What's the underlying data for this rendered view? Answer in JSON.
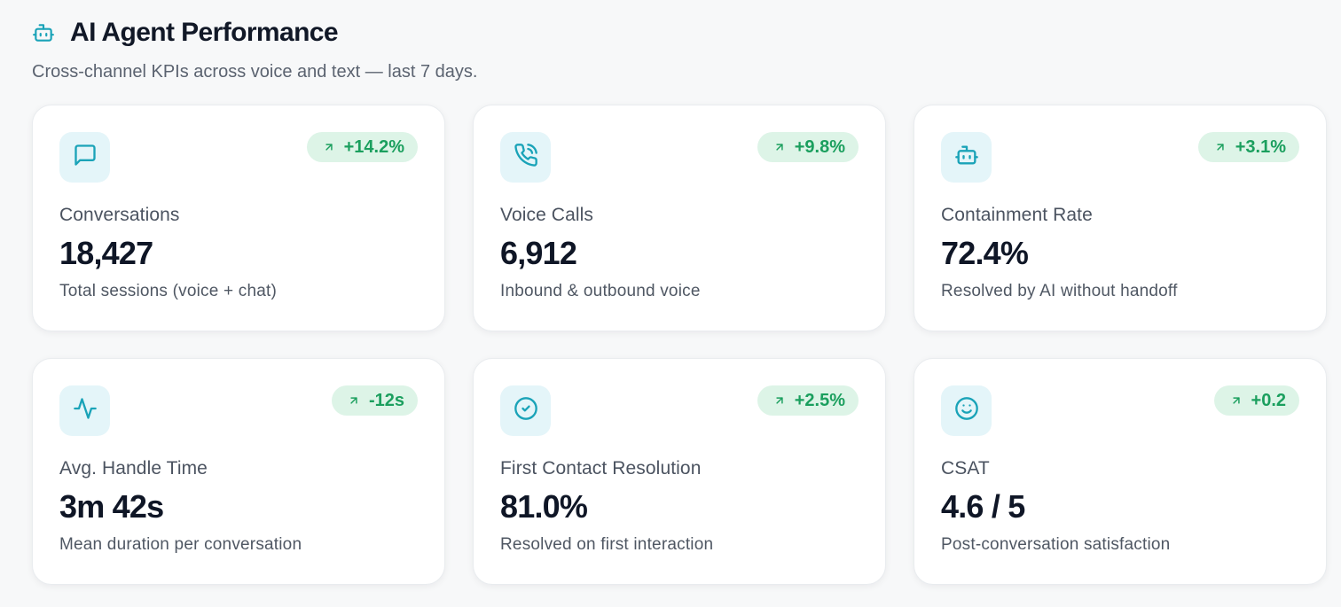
{
  "header": {
    "title": "AI Agent Performance",
    "subtitle": "Cross-channel KPIs across voice and text — last 7 days.",
    "icon": "robot-icon"
  },
  "colors": {
    "accent": "#1aa3b8",
    "icon_bg": "#e4f5f9",
    "positive": "#1b9f5e",
    "positive_bg": "#ddf4e7"
  },
  "cards": [
    {
      "icon": "message-square-icon",
      "trend": "+14.2%",
      "label": "Conversations",
      "value": "18,427",
      "description": "Total sessions (voice + chat)"
    },
    {
      "icon": "phone-call-icon",
      "trend": "+9.8%",
      "label": "Voice Calls",
      "value": "6,912",
      "description": "Inbound & outbound voice"
    },
    {
      "icon": "robot-icon",
      "trend": "+3.1%",
      "label": "Containment Rate",
      "value": "72.4%",
      "description": "Resolved by AI without handoff"
    },
    {
      "icon": "activity-icon",
      "trend": "-12s",
      "label": "Avg. Handle Time",
      "value": "3m 42s",
      "description": "Mean duration per conversation"
    },
    {
      "icon": "check-circle-icon",
      "trend": "+2.5%",
      "label": "First Contact Resolution",
      "value": "81.0%",
      "description": "Resolved on first interaction"
    },
    {
      "icon": "smile-icon",
      "trend": "+0.2",
      "label": "CSAT",
      "value": "4.6 / 5",
      "description": "Post-conversation satisfaction"
    }
  ]
}
